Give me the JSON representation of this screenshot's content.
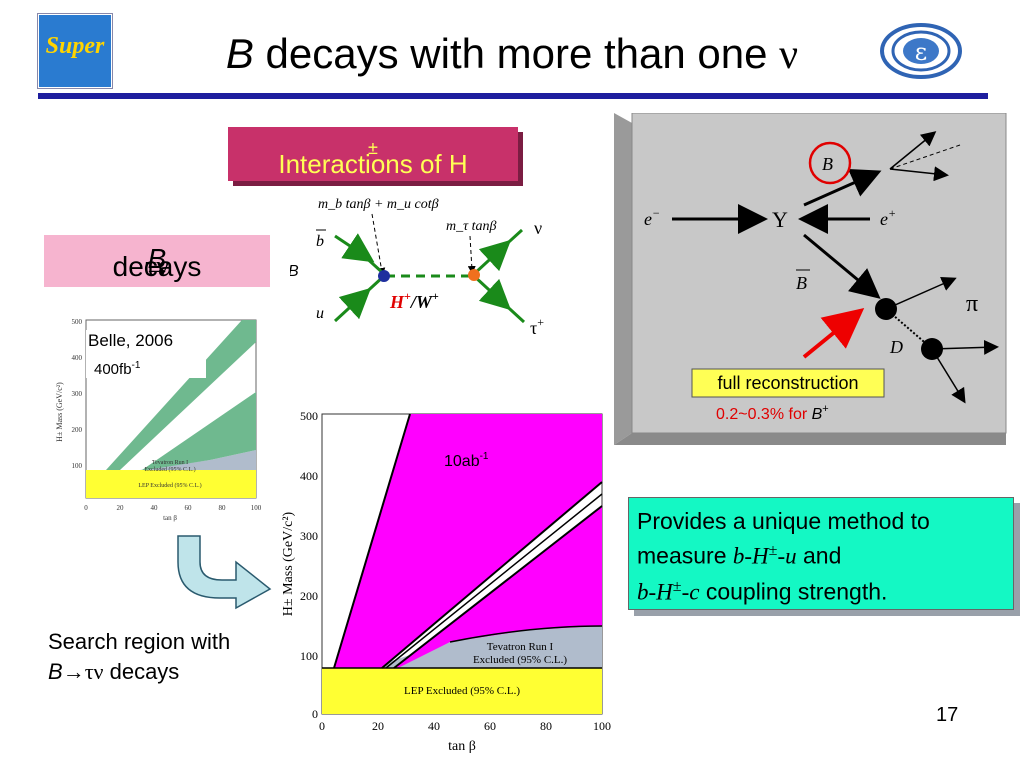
{
  "slide": {
    "title_italic": "B",
    "title_rest": "decays with more than one",
    "title_symbol": "ν",
    "page_number": "17"
  },
  "logos": {
    "left_text": "Super",
    "right_symbol": "ε"
  },
  "interactions": {
    "label": "Interactions of H",
    "label_sup": "±"
  },
  "btau": {
    "b": "B",
    "arrow": "→",
    "taunu": "τν",
    "rest": " decays"
  },
  "feynman": {
    "vertex1_coupling": "m_b tanβ + m_u cotβ",
    "vertex2_coupling": "m_τ tanβ",
    "bbar": "b",
    "u": "u",
    "B_label": "B",
    "nu": "ν",
    "tau_plus": "τ",
    "tau_sup": "+",
    "propagator_H": "H",
    "propagator_H_sup": "+",
    "propagator_W": "/W",
    "propagator_W_sup": "+"
  },
  "event_panel": {
    "e_minus": "e",
    "e_minus_sup": "−",
    "upsilon": "Υ",
    "e_plus": "e",
    "e_plus_sup": "+",
    "B": "B",
    "Bbar": "B",
    "pi": "π",
    "D": "D",
    "full_reco": "full reconstruction",
    "efficiency": "0.2~0.3% for ",
    "efficiency_B": "B",
    "efficiency_sup": "+"
  },
  "small_plot": {
    "label1": "Belle, 2006",
    "label2": "400fb",
    "label2_sup": "-1",
    "ylabel": "H± Mass (GeV/c²)",
    "xlabel": "tan β",
    "tevatron": [
      "Tevatron Run I",
      "Excluded (95% C.L.)"
    ],
    "lep": "LEP Excluded (95% C.L.)",
    "yticks": [
      "500",
      "400",
      "300",
      "200",
      "100"
    ],
    "xticks": [
      "0",
      "20",
      "40",
      "60",
      "80",
      "100"
    ]
  },
  "big_plot": {
    "label": "10ab",
    "label_sup": "-1",
    "ylabel": "H± Mass (GeV/c²)",
    "xlabel": "tan β",
    "tevatron": [
      "Tevatron Run I",
      "Excluded (95% C.L.)"
    ],
    "lep": "LEP Excluded (95% C.L.)",
    "yticks": [
      "500",
      "400",
      "300",
      "200",
      "100",
      "0"
    ],
    "xticks": [
      "0",
      "20",
      "40",
      "60",
      "80",
      "100"
    ]
  },
  "provides": {
    "line1": "Provides a unique method to",
    "line2_a": "measure ",
    "line2_b": "b-H",
    "line2_sup": "±",
    "line2_c": "-u",
    "line2_d": " and",
    "line3_a": "b-H",
    "line3_sup": "±",
    "line3_b": "-c",
    "line3_c": " coupling strength."
  },
  "search": {
    "line1": "Search region with",
    "b": "B",
    "arrow": "→",
    "taunu": "τν",
    "rest": " decays"
  },
  "colors": {
    "title_rule": "#1e1e9e",
    "interactions_box": "#c8316a",
    "interactions_text": "#ffff55",
    "btau_box": "#f6b4cf",
    "provides_box": "#14f8c4",
    "panel_gray": "#c8c8c8",
    "magenta_region": "#ff00ff",
    "green_region": "#6fb98f",
    "lep_yellow": "#ffff33",
    "tevatron_blue": "#b0bccc",
    "red_accent": "#ff0000"
  }
}
